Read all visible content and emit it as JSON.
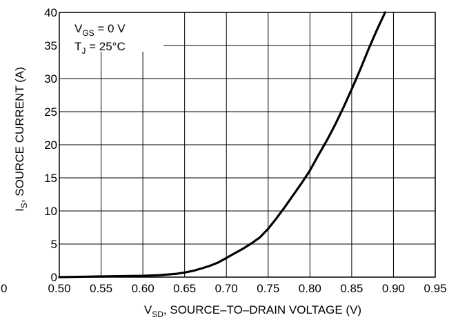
{
  "chart_data": {
    "type": "line",
    "title": "",
    "xlabel": {
      "main": "V",
      "sub": "SD",
      "rest": ", SOURCE–TO–DRAIN VOLTAGE (V)"
    },
    "ylabel": {
      "main": "I",
      "sub": "S",
      "rest": ", SOURCE CURRENT (A)"
    },
    "xlim": [
      0.5,
      0.95
    ],
    "ylim": [
      0,
      40
    ],
    "x_ticks": [
      0.5,
      0.55,
      0.6,
      0.65,
      0.7,
      0.75,
      0.8,
      0.85,
      0.9,
      0.95
    ],
    "x_tick_labels": [
      "0.50",
      "0.55",
      "0.60",
      "0.65",
      "0.70",
      "0.75",
      "0.80",
      "0.85",
      "0.90",
      "0.95"
    ],
    "y_ticks": [
      0,
      5,
      10,
      15,
      20,
      25,
      30,
      35,
      40
    ],
    "y_tick_labels": [
      "0",
      "5",
      "10",
      "15",
      "20",
      "25",
      "30",
      "35",
      "40"
    ],
    "extra_left_tick": "0",
    "grid": true,
    "annotations": [
      {
        "main": "V",
        "sub": "GS",
        "rest": " = 0 V"
      },
      {
        "main": "T",
        "sub": "J",
        "rest": " = 25°C"
      }
    ],
    "series": [
      {
        "x": [
          0.5,
          0.55,
          0.6,
          0.62,
          0.64,
          0.65,
          0.66,
          0.67,
          0.68,
          0.69,
          0.7,
          0.71,
          0.72,
          0.73,
          0.74,
          0.75,
          0.76,
          0.77,
          0.78,
          0.79,
          0.8,
          0.81,
          0.82,
          0.83,
          0.84,
          0.85,
          0.86,
          0.87,
          0.88,
          0.89
        ],
        "y": [
          0.0,
          0.1,
          0.2,
          0.3,
          0.5,
          0.7,
          0.95,
          1.3,
          1.7,
          2.2,
          2.9,
          3.6,
          4.3,
          5.1,
          6.0,
          7.3,
          8.9,
          10.6,
          12.4,
          14.2,
          16.1,
          18.4,
          20.6,
          23.0,
          25.6,
          28.4,
          31.3,
          34.4,
          37.3,
          40.0
        ]
      }
    ]
  }
}
